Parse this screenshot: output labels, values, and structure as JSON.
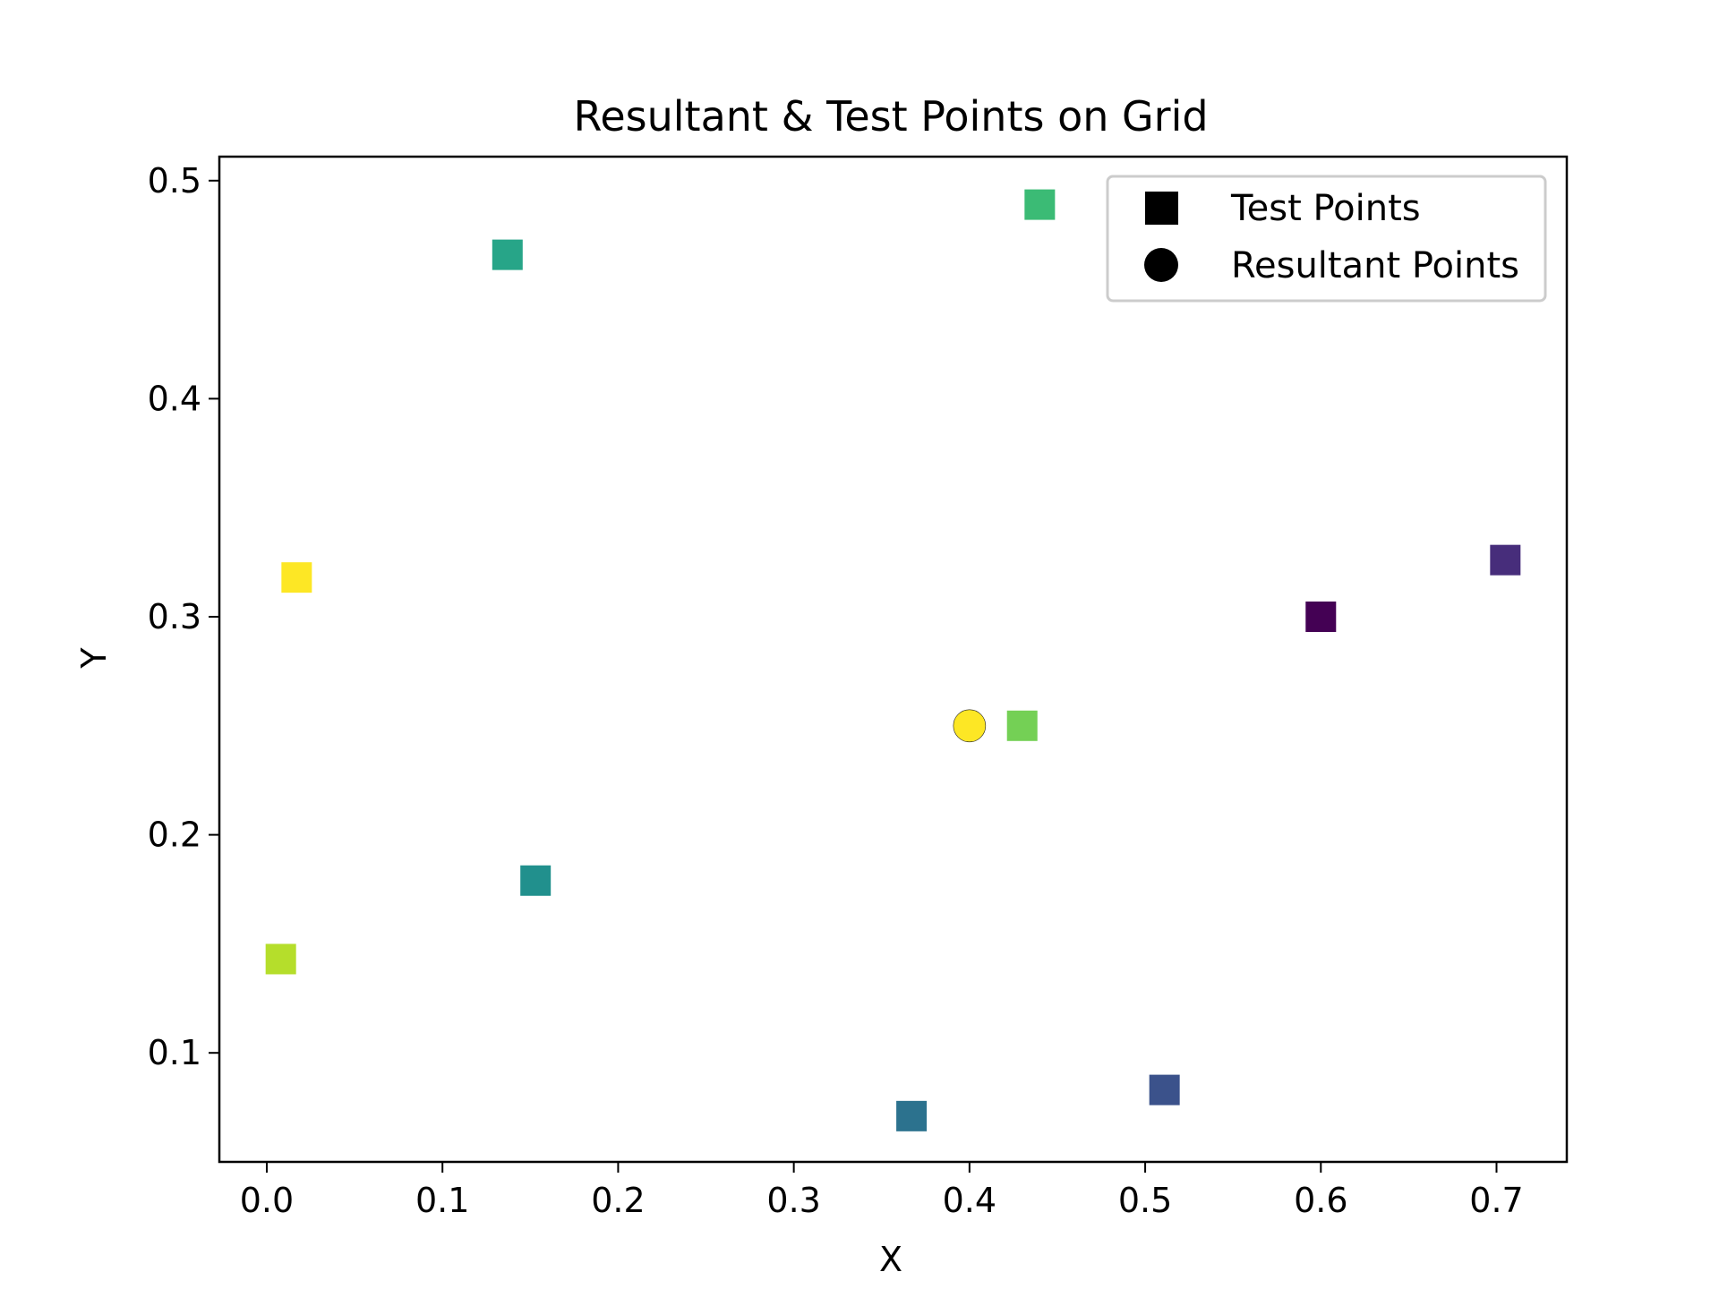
{
  "chart_data": {
    "type": "scatter",
    "title": "Resultant & Test Points on Grid",
    "xlabel": "X",
    "ylabel": "Y",
    "xlim": [
      -0.027,
      0.74
    ],
    "ylim": [
      0.05,
      0.511
    ],
    "xticks": [
      0.0,
      0.1,
      0.2,
      0.3,
      0.4,
      0.5,
      0.6,
      0.7
    ],
    "xtick_labels": [
      "0.0",
      "0.1",
      "0.2",
      "0.3",
      "0.4",
      "0.5",
      "0.6",
      "0.7"
    ],
    "yticks": [
      0.1,
      0.2,
      0.3,
      0.4,
      0.5
    ],
    "ytick_labels": [
      "0.1",
      "0.2",
      "0.3",
      "0.4",
      "0.5"
    ],
    "grid": false,
    "legend_position": "top-right",
    "legend": [
      {
        "label": "Test Points",
        "marker": "square"
      },
      {
        "label": "Resultant Points",
        "marker": "circle"
      }
    ],
    "series": [
      {
        "name": "Test Points",
        "marker": "square",
        "points": [
          {
            "x": 0.6,
            "y": 0.3,
            "color": "#440154"
          },
          {
            "x": 0.705,
            "y": 0.326,
            "color": "#472d7b"
          },
          {
            "x": 0.511,
            "y": 0.083,
            "color": "#3b528b"
          },
          {
            "x": 0.367,
            "y": 0.071,
            "color": "#2c728e"
          },
          {
            "x": 0.153,
            "y": 0.179,
            "color": "#21908d"
          },
          {
            "x": 0.137,
            "y": 0.466,
            "color": "#27a588"
          },
          {
            "x": 0.44,
            "y": 0.489,
            "color": "#3bbb75"
          },
          {
            "x": 0.43,
            "y": 0.25,
            "color": "#74d055"
          },
          {
            "x": 0.008,
            "y": 0.143,
            "color": "#b5de2b"
          },
          {
            "x": 0.017,
            "y": 0.318,
            "color": "#fde725"
          }
        ]
      },
      {
        "name": "Resultant Points",
        "marker": "circle",
        "points": [
          {
            "x": 0.4,
            "y": 0.25,
            "color": "#fde725"
          }
        ]
      }
    ]
  }
}
